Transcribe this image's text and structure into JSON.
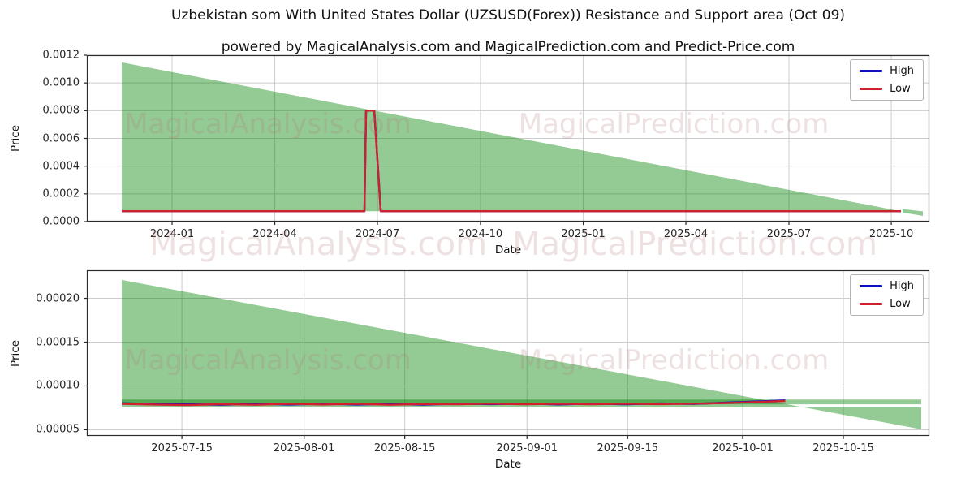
{
  "title": "Uzbekistan som With United States Dollar (UZSUSD(Forex)) Resistance and Support area (Oct 09)",
  "subtitle": "powered by MagicalAnalysis.com and MagicalPrediction.com and Predict-Price.com",
  "watermarks": {
    "analysis": "MagicalAnalysis.com",
    "prediction": "MagicalPrediction.com"
  },
  "colors": {
    "high": "#0d0dc4",
    "low": "#cf2030",
    "area": "#008000",
    "grid": "#cccccc",
    "frame": "#2b2b2b",
    "tick": "#262626"
  },
  "chart_data": [
    {
      "type": "area",
      "name": "long-term-resistance-support",
      "xlabel": "Date",
      "ylabel": "Price",
      "ylim": [
        0,
        0.0012
      ],
      "grid": true,
      "legend_position": "upper right",
      "legend": [
        {
          "label": "High",
          "color": "high"
        },
        {
          "label": "Low",
          "color": "low"
        }
      ],
      "yticks": {
        "values": [
          0.0,
          0.0002,
          0.0004,
          0.0006,
          0.0008,
          0.001,
          0.0012
        ],
        "labels": [
          "0.0000",
          "0.0002",
          "0.0004",
          "0.0006",
          "0.0008",
          "0.0010",
          "0.0012"
        ]
      },
      "xticks": {
        "pos": [
          0.1012,
          0.2231,
          0.3449,
          0.4672,
          0.5892,
          0.711,
          0.8333,
          0.9548
        ],
        "labels": [
          "2024-01",
          "2024-04",
          "2024-07",
          "2024-10",
          "2025-01",
          "2025-04",
          "2025-07",
          "2025-10"
        ]
      },
      "areas": [
        {
          "name": "resistance-support-triangle",
          "points": [
            [
              0.0414,
              0.001148
            ],
            [
              0.9663,
              7.5e-05
            ],
            [
              0.0414,
              7.5e-05
            ]
          ]
        },
        {
          "name": "forecast-sliver",
          "points": [
            [
              0.9682,
              9e-05
            ],
            [
              0.9923,
              7.4e-05
            ],
            [
              0.9923,
              4.1e-05
            ],
            [
              0.9682,
              6.6e-05
            ]
          ]
        }
      ],
      "series": [
        {
          "name": "High",
          "color": "high",
          "points": [
            [
              0.0414,
              7.5e-05
            ],
            [
              0.3295,
              7.5e-05
            ],
            [
              0.3314,
              0.0008
            ],
            [
              0.3411,
              0.0008
            ],
            [
              0.3488,
              7.5e-05
            ],
            [
              0.9663,
              7.5e-05
            ]
          ]
        },
        {
          "name": "Low",
          "color": "low",
          "points": [
            [
              0.0414,
              7.5e-05
            ],
            [
              0.3295,
              7.5e-05
            ],
            [
              0.3314,
              0.0008
            ],
            [
              0.3411,
              0.0008
            ],
            [
              0.3488,
              7.5e-05
            ],
            [
              0.9663,
              7.5e-05
            ]
          ]
        }
      ]
    },
    {
      "type": "area",
      "name": "recent-resistance-support",
      "xlabel": "Date",
      "ylabel": "Price",
      "ylim": [
        4.3e-05,
        0.000232
      ],
      "grid": true,
      "legend_position": "upper right",
      "legend": [
        {
          "label": "High",
          "color": "high"
        },
        {
          "label": "Low",
          "color": "low"
        }
      ],
      "yticks": {
        "values": [
          5e-05,
          0.0001,
          0.00015,
          0.0002
        ],
        "labels": [
          "0.00005",
          "0.00010",
          "0.00015",
          "0.00020"
        ]
      },
      "xticks": {
        "pos": [
          0.1128,
          0.2579,
          0.3773,
          0.5224,
          0.6419,
          0.7784,
          0.8979
        ],
        "labels": [
          "2025-07-15",
          "2025-08-01",
          "2025-08-15",
          "2025-09-01",
          "2025-09-15",
          "2025-10-01",
          "2025-10-15"
        ]
      },
      "areas": [
        {
          "name": "resistance-triangle",
          "points": [
            [
              0.0414,
              0.000221
            ],
            [
              0.851,
              7.55e-05
            ],
            [
              0.0414,
              7.55e-05
            ]
          ]
        },
        {
          "name": "descending-wedge",
          "points": [
            [
              0.851,
              7.55e-05
            ],
            [
              0.9904,
              7.55e-05
            ],
            [
              0.9904,
              5.05e-05
            ]
          ]
        },
        {
          "name": "support-band",
          "points": [
            [
              0.0414,
              8.45e-05
            ],
            [
              0.9904,
              8.45e-05
            ],
            [
              0.9904,
              7.9e-05
            ],
            [
              0.0414,
              7.9e-05
            ]
          ]
        }
      ],
      "series": [
        {
          "name": "High",
          "color": "high",
          "points": [
            [
              0.0414,
              8.02e-05
            ],
            [
              0.08,
              7.95e-05
            ],
            [
              0.12,
              7.9e-05
            ],
            [
              0.16,
              7.85e-05
            ],
            [
              0.2,
              7.95e-05
            ],
            [
              0.24,
              7.88e-05
            ],
            [
              0.28,
              7.97e-05
            ],
            [
              0.32,
              7.88e-05
            ],
            [
              0.36,
              7.95e-05
            ],
            [
              0.4,
              7.86e-05
            ],
            [
              0.44,
              7.98e-05
            ],
            [
              0.48,
              7.92e-05
            ],
            [
              0.52,
              7.99e-05
            ],
            [
              0.56,
              7.89e-05
            ],
            [
              0.6,
              7.98e-05
            ],
            [
              0.64,
              7.9e-05
            ],
            [
              0.68,
              8e-05
            ],
            [
              0.72,
              7.94e-05
            ],
            [
              0.76,
              8.1e-05
            ],
            [
              0.8,
              8.24e-05
            ],
            [
              0.829,
              8.35e-05
            ]
          ]
        },
        {
          "name": "Low",
          "color": "low",
          "points": [
            [
              0.0414,
              7.95e-05
            ],
            [
              0.08,
              7.88e-05
            ],
            [
              0.12,
              7.82e-05
            ],
            [
              0.16,
              7.92e-05
            ],
            [
              0.2,
              7.85e-05
            ],
            [
              0.24,
              7.95e-05
            ],
            [
              0.28,
              7.88e-05
            ],
            [
              0.32,
              7.95e-05
            ],
            [
              0.36,
              7.85e-05
            ],
            [
              0.4,
              7.93e-05
            ],
            [
              0.44,
              7.9e-05
            ],
            [
              0.48,
              7.98e-05
            ],
            [
              0.52,
              7.9e-05
            ],
            [
              0.56,
              7.95e-05
            ],
            [
              0.6,
              7.9e-05
            ],
            [
              0.64,
              7.97e-05
            ],
            [
              0.68,
              7.92e-05
            ],
            [
              0.72,
              7.98e-05
            ],
            [
              0.76,
              8.05e-05
            ],
            [
              0.8,
              8.18e-05
            ],
            [
              0.829,
              8.28e-05
            ]
          ]
        }
      ]
    }
  ]
}
